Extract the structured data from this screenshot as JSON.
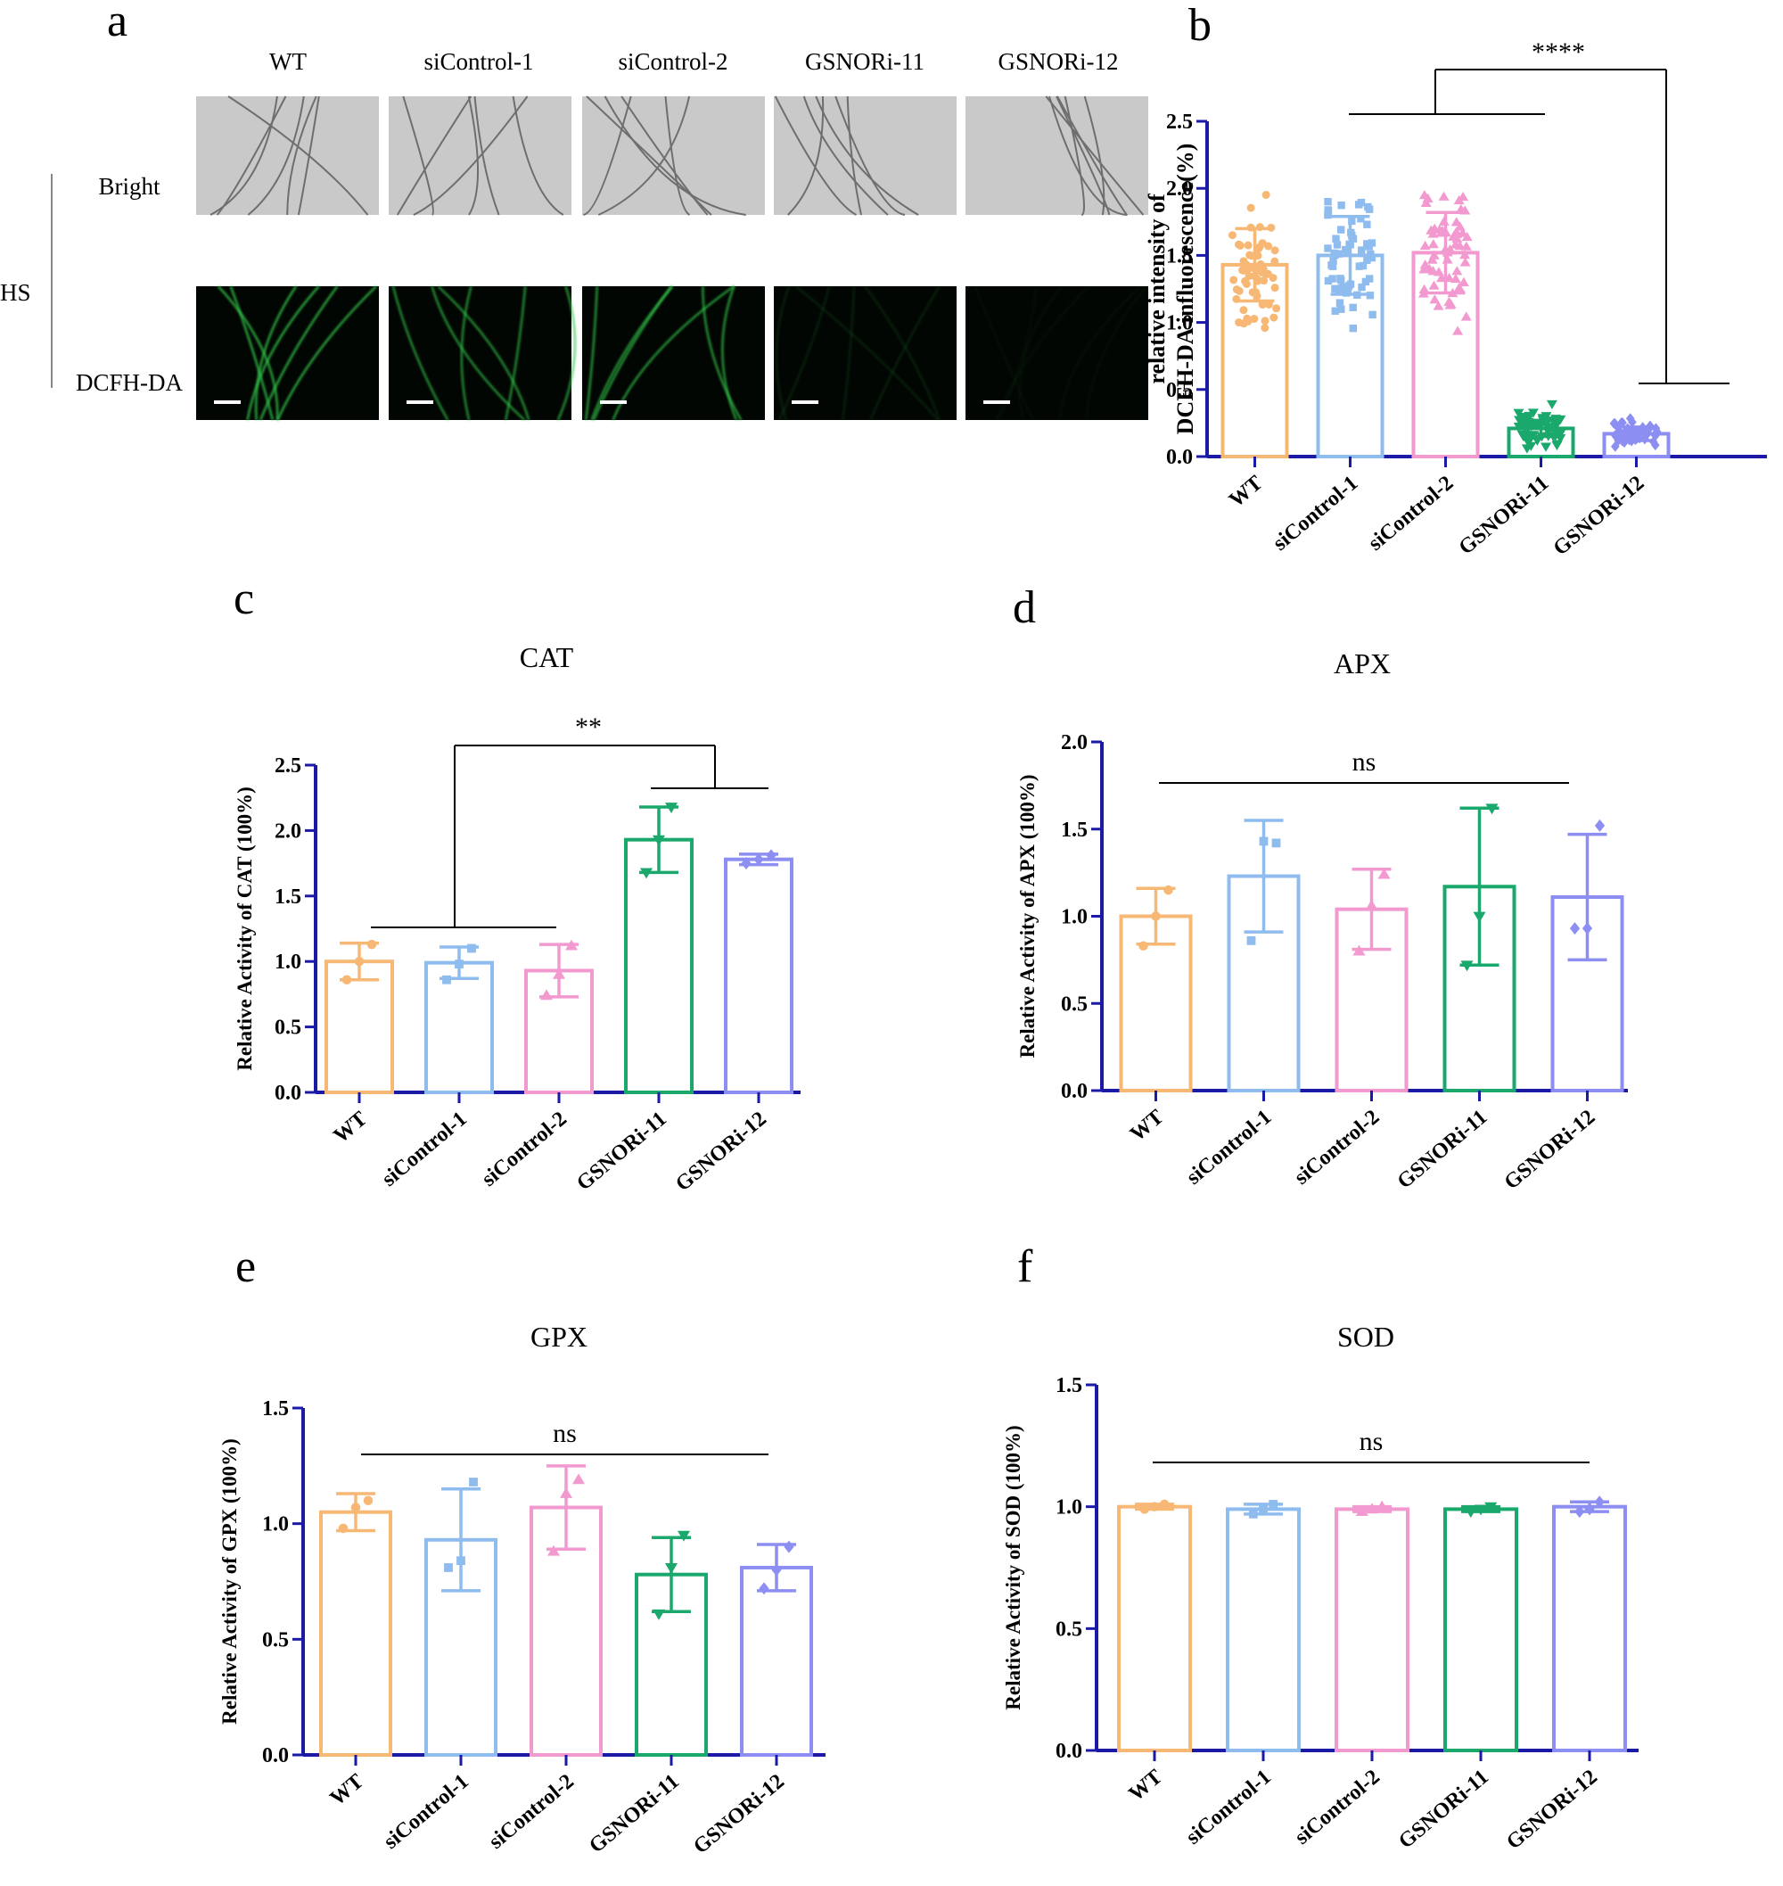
{
  "panel_letters": [
    "a",
    "b",
    "c",
    "d",
    "e",
    "f"
  ],
  "micrographs": {
    "columns": [
      "WT",
      "siControl-1",
      "siControl-2",
      "GSNORi-11",
      "GSNORi-12"
    ],
    "rows": [
      "Bright",
      "DCFH-DA"
    ],
    "group_label": "HS",
    "fluorescence_levels": [
      0.95,
      0.8,
      0.85,
      0.15,
      0.05
    ]
  },
  "colors": {
    "axis": "#1a1aa6",
    "series": [
      "#f7b876",
      "#8fbcef",
      "#f29ad0",
      "#1aa86c",
      "#8d8ef2"
    ]
  },
  "chart_data": [
    {
      "id": "b",
      "type": "bar",
      "title": "",
      "ylabel": "relative intensity of DCFH-DA influorescence(%)",
      "categories": [
        "WT",
        "siControl-1",
        "siControl-2",
        "GSNORi-11",
        "GSNORi-12"
      ],
      "values": [
        1.43,
        1.5,
        1.52,
        0.21,
        0.17
      ],
      "errors": [
        0.27,
        0.29,
        0.3,
        0.06,
        0.05
      ],
      "ylim": [
        0,
        2.5
      ],
      "yticks": [
        "0.0",
        "0.5",
        "1.0",
        "1.5",
        "2.0",
        "2.5"
      ],
      "significance": "****",
      "point_spread": [
        0.3,
        0.3,
        0.33,
        0.09,
        0.07
      ],
      "n_points": [
        60,
        60,
        60,
        60,
        60
      ]
    },
    {
      "id": "c",
      "type": "bar",
      "title": "CAT",
      "ylabel": "Relative Activity of CAT (100%)",
      "categories": [
        "WT",
        "siControl-1",
        "siControl-2",
        "GSNORi-11",
        "GSNORi-12"
      ],
      "values": [
        1.0,
        0.99,
        0.93,
        1.93,
        1.78
      ],
      "errors": [
        0.14,
        0.12,
        0.2,
        0.25,
        0.04
      ],
      "points": [
        [
          0.86,
          1.0,
          1.13
        ],
        [
          0.86,
          0.98,
          1.1
        ],
        [
          0.74,
          0.9,
          1.12
        ],
        [
          1.68,
          1.93,
          2.18
        ],
        [
          1.75,
          1.78,
          1.81
        ]
      ],
      "ylim": [
        0,
        2.5
      ],
      "yticks": [
        "0.0",
        "0.5",
        "1.0",
        "1.5",
        "2.0",
        "2.5"
      ],
      "significance": "**"
    },
    {
      "id": "d",
      "type": "bar",
      "title": "APX",
      "ylabel": "Relative Activity of APX (100%)",
      "categories": [
        "WT",
        "siControl-1",
        "siControl-2",
        "GSNORi-11",
        "GSNORi-12"
      ],
      "values": [
        1.0,
        1.23,
        1.04,
        1.17,
        1.11
      ],
      "errors": [
        0.16,
        0.32,
        0.23,
        0.45,
        0.36
      ],
      "points": [
        [
          0.83,
          1.0,
          1.15
        ],
        [
          0.86,
          1.43,
          1.42
        ],
        [
          0.8,
          1.06,
          1.24
        ],
        [
          0.72,
          1.0,
          1.62
        ],
        [
          0.93,
          0.93,
          1.52
        ]
      ],
      "ylim": [
        0,
        2.0
      ],
      "yticks": [
        "0.0",
        "0.5",
        "1.0",
        "1.5",
        "2.0"
      ],
      "significance": "ns"
    },
    {
      "id": "e",
      "type": "bar",
      "title": "GPX",
      "ylabel": "Relative Activity of GPX (100%)",
      "categories": [
        "WT",
        "siControl-1",
        "siControl-2",
        "GSNORi-11",
        "GSNORi-12"
      ],
      "values": [
        1.05,
        0.93,
        1.07,
        0.78,
        0.81
      ],
      "errors": [
        0.08,
        0.22,
        0.18,
        0.16,
        0.1
      ],
      "points": [
        [
          0.98,
          1.07,
          1.1
        ],
        [
          0.81,
          0.84,
          1.18
        ],
        [
          0.88,
          1.13,
          1.19
        ],
        [
          0.61,
          0.81,
          0.95
        ],
        [
          0.72,
          0.8,
          0.9
        ]
      ],
      "ylim": [
        0,
        1.5
      ],
      "yticks": [
        "0.0",
        "0.5",
        "1.0",
        "1.5"
      ],
      "significance": "ns"
    },
    {
      "id": "f",
      "type": "bar",
      "title": "SOD",
      "ylabel": "Relative Activity of SOD (100%)",
      "categories": [
        "WT",
        "siControl-1",
        "siControl-2",
        "GSNORi-11",
        "GSNORi-12"
      ],
      "values": [
        1.0,
        0.99,
        0.99,
        0.99,
        1.0
      ],
      "errors": [
        0.01,
        0.02,
        0.01,
        0.01,
        0.02
      ],
      "points": [
        [
          0.99,
          1.0,
          1.01
        ],
        [
          0.97,
          0.99,
          1.01
        ],
        [
          0.98,
          0.99,
          1.0
        ],
        [
          0.98,
          0.99,
          1.0
        ],
        [
          0.98,
          0.99,
          1.02
        ]
      ],
      "ylim": [
        0,
        1.5
      ],
      "yticks": [
        "0.0",
        "0.5",
        "1.0",
        "1.5"
      ],
      "significance": "ns"
    }
  ]
}
